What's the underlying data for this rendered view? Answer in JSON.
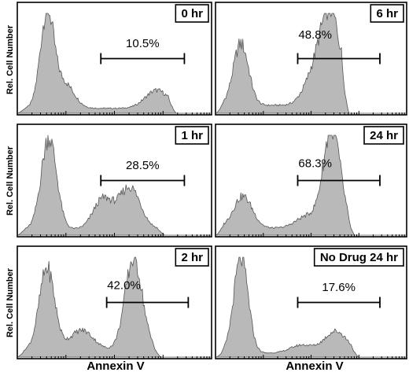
{
  "chart_data": {
    "type": "area",
    "layout_words": "3 rows x 2 columns of flow cytometry histograms",
    "ylabel": "Rel. Cell Number",
    "xlabel": "Annexin V",
    "xscale": "log",
    "panels": [
      {
        "label": "0 hr",
        "gate_percent": "10.5%",
        "peaks": [
          {
            "center": 0.15,
            "width": 0.035,
            "height": 0.95
          },
          {
            "center": 0.24,
            "width": 0.05,
            "height": 0.25
          },
          {
            "center": 0.72,
            "width": 0.06,
            "height": 0.18
          }
        ],
        "baseline": 0.05,
        "end": 0.82,
        "gate": [
          0.43,
          0.86
        ]
      },
      {
        "label": "6 hr",
        "gate_percent": "48.8%",
        "peaks": [
          {
            "center": 0.13,
            "width": 0.04,
            "height": 0.62
          },
          {
            "center": 0.6,
            "width": 0.055,
            "height": 0.95
          },
          {
            "center": 0.5,
            "width": 0.05,
            "height": 0.2
          }
        ],
        "baseline": 0.08,
        "end": 0.7,
        "gate": [
          0.43,
          0.86
        ]
      },
      {
        "label": "1 hr",
        "gate_percent": "28.5%",
        "peaks": [
          {
            "center": 0.16,
            "width": 0.04,
            "height": 0.92
          },
          {
            "center": 0.44,
            "width": 0.05,
            "height": 0.3
          },
          {
            "center": 0.58,
            "width": 0.055,
            "height": 0.42
          }
        ],
        "baseline": 0.06,
        "end": 0.76,
        "gate": [
          0.43,
          0.86
        ]
      },
      {
        "label": "24 hr",
        "gate_percent": "68.3%",
        "peaks": [
          {
            "center": 0.14,
            "width": 0.05,
            "height": 0.32
          },
          {
            "center": 0.61,
            "width": 0.045,
            "height": 1.0
          },
          {
            "center": 0.48,
            "width": 0.06,
            "height": 0.12
          }
        ],
        "baseline": 0.07,
        "end": 0.73,
        "gate": [
          0.43,
          0.86
        ]
      },
      {
        "label": "2 hr",
        "gate_percent": "42.0%",
        "peaks": [
          {
            "center": 0.15,
            "width": 0.04,
            "height": 0.82
          },
          {
            "center": 0.6,
            "width": 0.045,
            "height": 0.92
          },
          {
            "center": 0.33,
            "width": 0.06,
            "height": 0.2
          }
        ],
        "baseline": 0.07,
        "end": 0.74,
        "gate": [
          0.46,
          0.88
        ]
      },
      {
        "label": "No Drug 24 hr",
        "gate_percent": "17.6%",
        "peaks": [
          {
            "center": 0.13,
            "width": 0.038,
            "height": 0.95
          },
          {
            "center": 0.63,
            "width": 0.06,
            "height": 0.22
          },
          {
            "center": 0.45,
            "width": 0.06,
            "height": 0.08
          }
        ],
        "baseline": 0.04,
        "end": 0.75,
        "gate": [
          0.43,
          0.86
        ]
      }
    ]
  }
}
